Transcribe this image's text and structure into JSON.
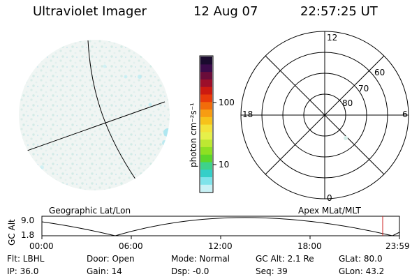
{
  "header": {
    "title": "Ultraviolet Imager",
    "date": "12 Aug 07",
    "time": "22:57:25 UT"
  },
  "colorbar": {
    "unit_label": "photon cm⁻²s⁻¹",
    "ticks": [
      "100",
      "10"
    ],
    "colors": [
      "#1a0a2e",
      "#3b0a4a",
      "#6a0c3a",
      "#9c0f2a",
      "#cc1a10",
      "#e83a0a",
      "#f26c0a",
      "#f79c12",
      "#f7c21a",
      "#f3e33a",
      "#e6f04a",
      "#bde832",
      "#8ee022",
      "#5cd62a",
      "#3ed28a",
      "#35cfc8",
      "#7fe3ea",
      "#c8f1f5"
    ]
  },
  "polar_plot": {
    "clock_labels": [
      "12",
      "18",
      "6",
      "0"
    ],
    "lat_labels": [
      "60",
      "70",
      "80"
    ]
  },
  "timeline": {
    "y_axis_label": "GC Alt",
    "y_ticks": [
      "9.0",
      "1.8"
    ],
    "left_label": "Geographic Lat/Lon",
    "right_label": "Apex MLat/MLT",
    "x_ticks": [
      "00:00",
      "06:00",
      "12:00",
      "18:00",
      "23:59"
    ],
    "marker_color": "#cc2222"
  },
  "info": {
    "flt": "Flt: LBHL",
    "ip": "IP: 36.0",
    "door": "Door: Open",
    "gain": "Gain: 14",
    "mode": "Mode: Normal",
    "dsp": "Dsp:   -0.0",
    "gcalt": "GC Alt: 2.1 Re",
    "seq": "Seq: 39",
    "glat": "GLat:  80.0",
    "glon": "GLon:  43.2"
  }
}
